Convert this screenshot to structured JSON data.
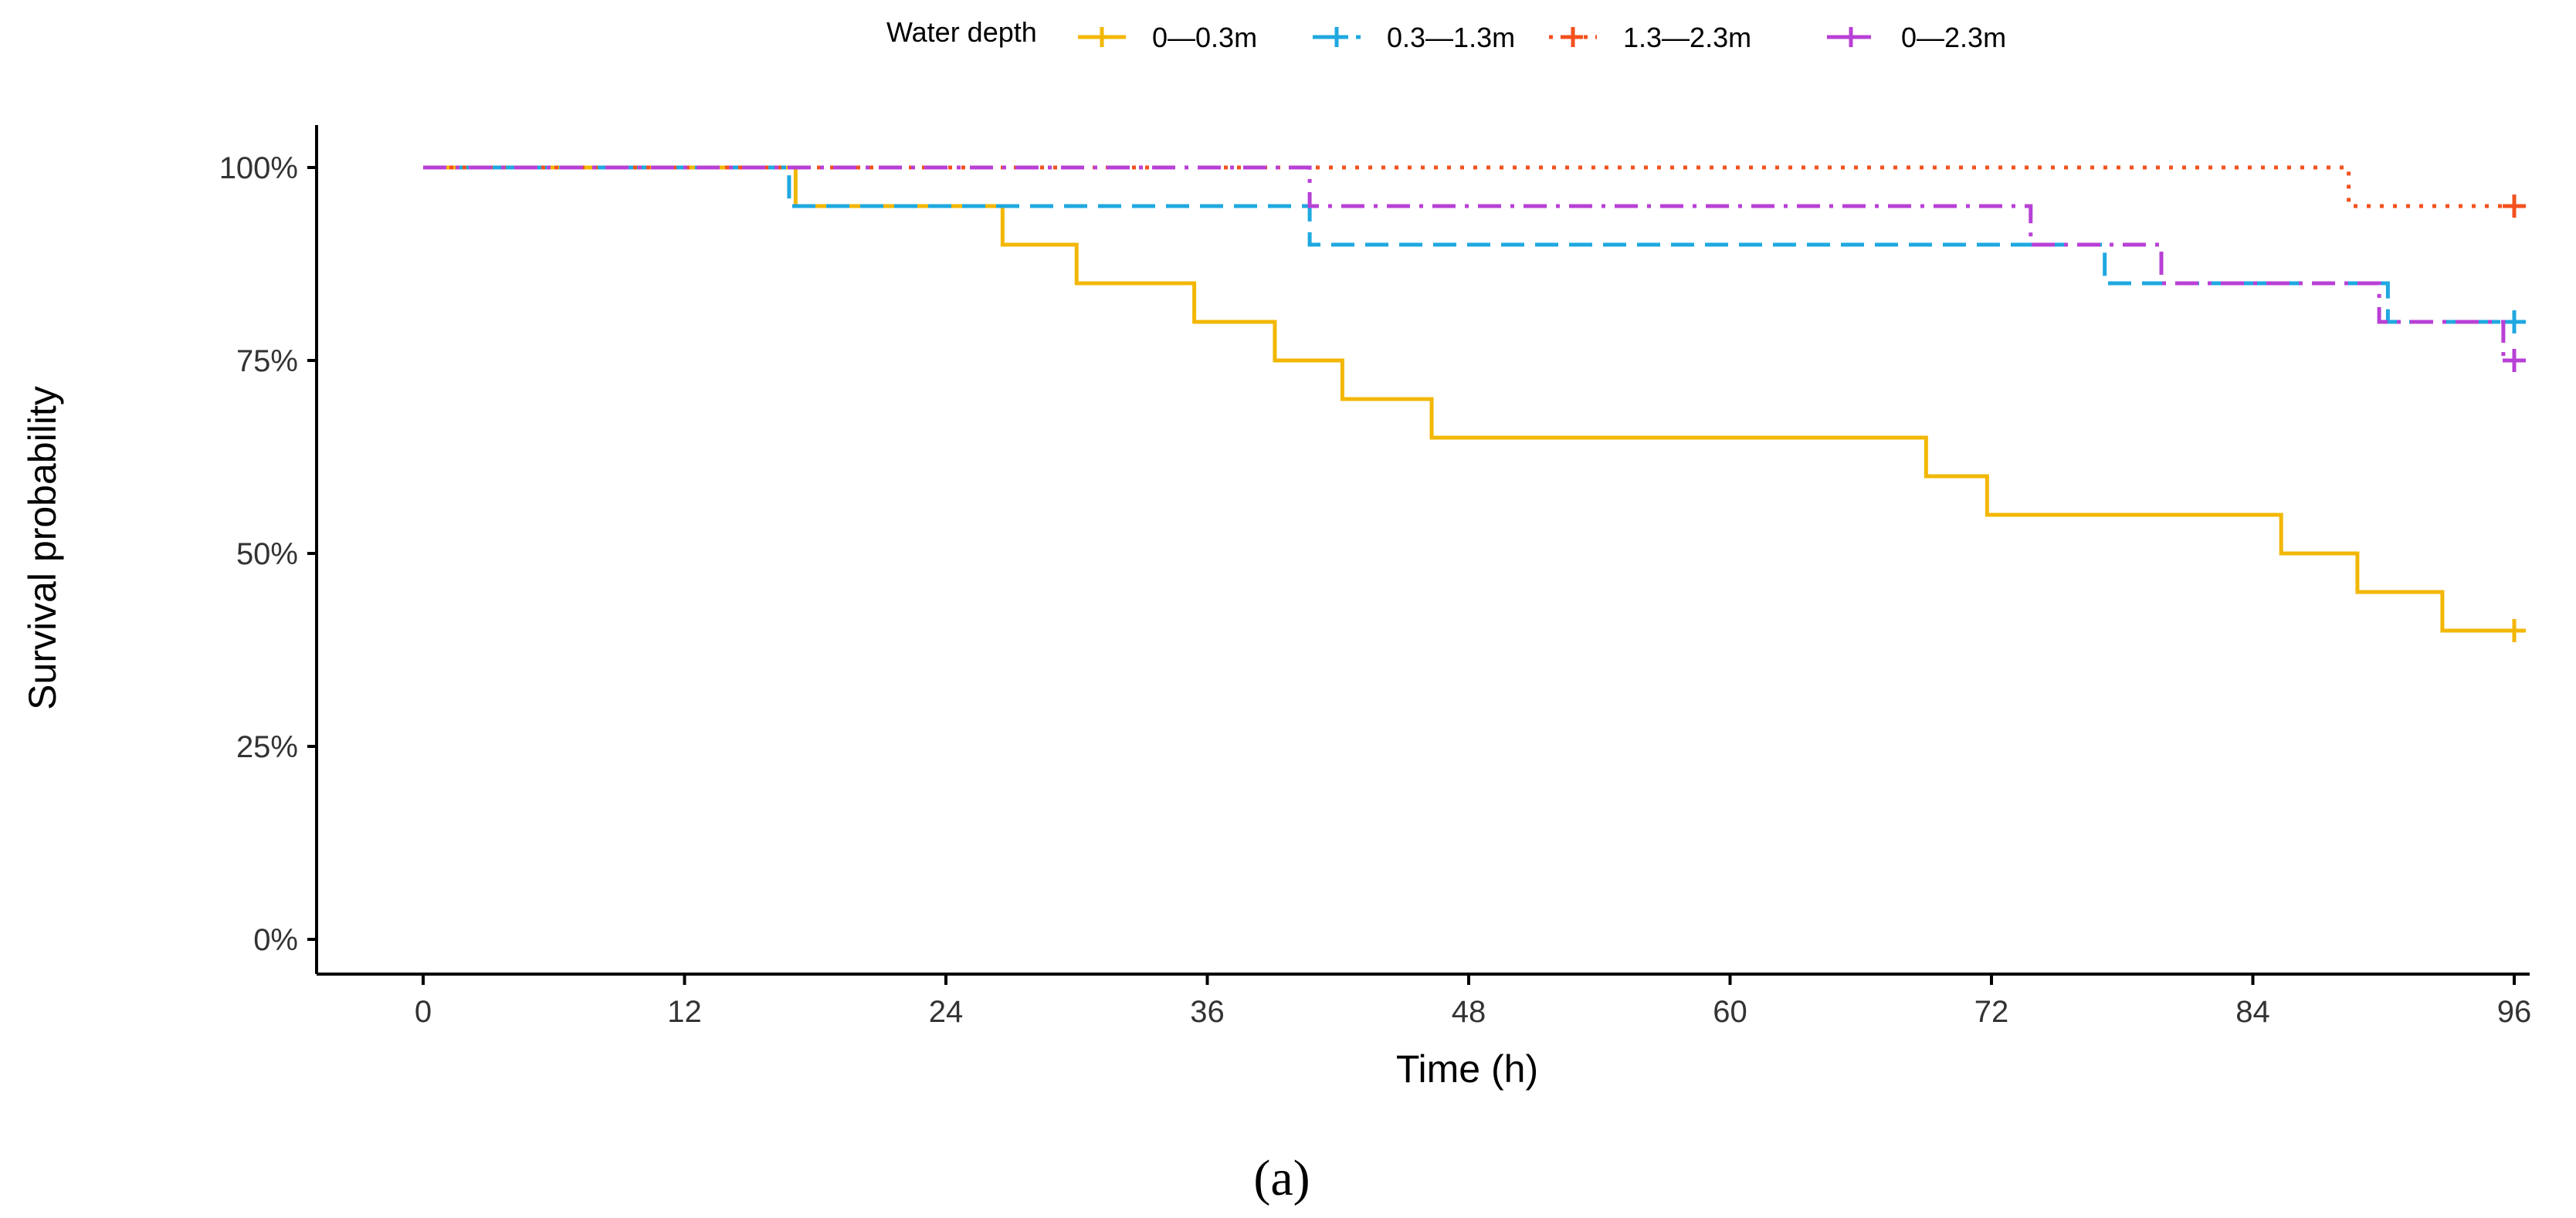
{
  "chart_data": {
    "type": "line",
    "subtype": "step",
    "title": "",
    "xlabel": "Time (h)",
    "ylabel": "Survival probability",
    "xlim": [
      0,
      96
    ],
    "ylim": [
      0,
      1
    ],
    "xticks": [
      0,
      12,
      24,
      36,
      48,
      60,
      72,
      84,
      96
    ],
    "xtick_labels": [
      "0",
      "12",
      "24",
      "36",
      "48",
      "60",
      "72",
      "84",
      "96"
    ],
    "yticks": [
      0,
      0.25,
      0.5,
      0.75,
      1.0
    ],
    "ytick_labels": [
      "0%",
      "25%",
      "50%",
      "75%",
      "100%"
    ],
    "legend_title": "Water depth",
    "legend_position": "top",
    "grid": false,
    "series": [
      {
        "name": "0—0.3m",
        "color": "#F2B705",
        "dash": "solid",
        "x": [
          0,
          17.1,
          26.6,
          30,
          35.4,
          39.1,
          42.2,
          46.3,
          69,
          71.8,
          85.3,
          88.8,
          92.7,
          96
        ],
        "y": [
          1.0,
          0.95,
          0.9,
          0.85,
          0.8,
          0.75,
          0.7,
          0.65,
          0.6,
          0.55,
          0.5,
          0.45,
          0.4,
          0.4
        ],
        "censor": [
          [
            96,
            0.4
          ]
        ]
      },
      {
        "name": "0.3—1.3m",
        "color": "#1FA8E0",
        "dash": "dashed",
        "x": [
          0,
          16.8,
          40.7,
          77.2,
          90.2,
          96
        ],
        "y": [
          1.0,
          0.95,
          0.9,
          0.85,
          0.8,
          0.8
        ],
        "censor": [
          [
            96,
            0.8
          ]
        ]
      },
      {
        "name": "1.3—2.3m",
        "color": "#F4511E",
        "dash": "dotted",
        "x": [
          0,
          88.4,
          96
        ],
        "y": [
          1.0,
          0.95,
          0.95
        ],
        "censor": [
          [
            96,
            0.95
          ]
        ]
      },
      {
        "name": "0—2.3m",
        "color": "#B840D6",
        "dash": "dashdot",
        "x": [
          0,
          40.7,
          73.8,
          79.8,
          89.8,
          95.5,
          96
        ],
        "y": [
          1.0,
          0.95,
          0.9,
          0.85,
          0.8,
          0.75,
          0.75
        ],
        "censor": [
          [
            96,
            0.75
          ]
        ]
      }
    ]
  },
  "caption": "(a)"
}
